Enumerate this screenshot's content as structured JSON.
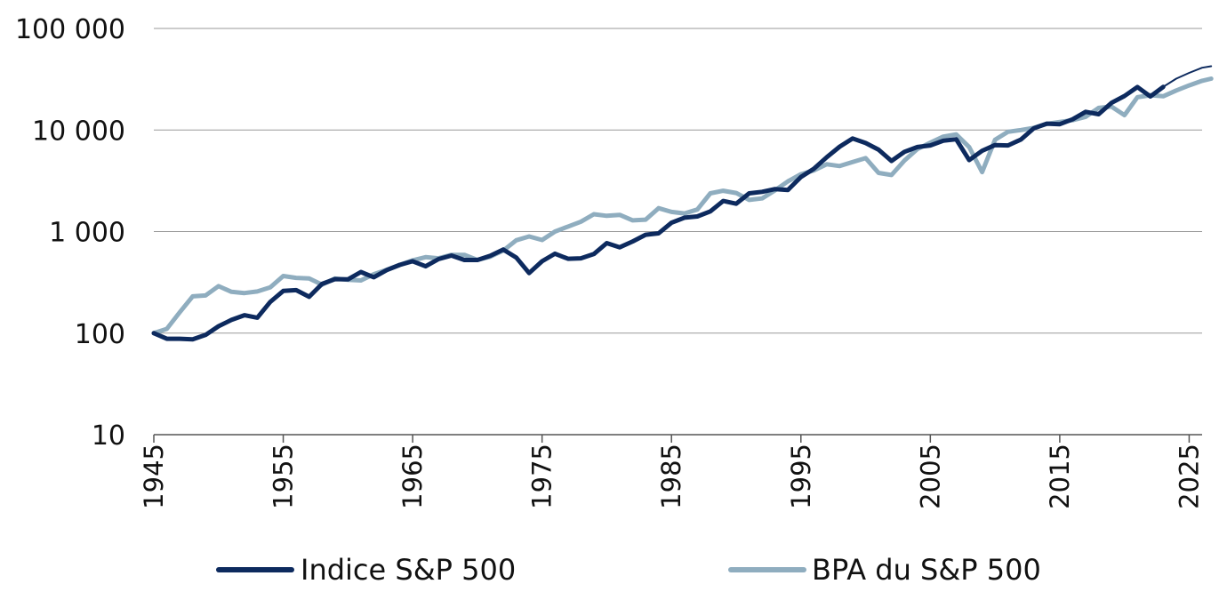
{
  "chart_data": {
    "type": "line",
    "log_scale_y": true,
    "ylim": [
      10,
      100000
    ],
    "xlim": [
      1945,
      2026
    ],
    "y_ticks": [
      {
        "value": 100000,
        "label": "100 000"
      },
      {
        "value": 10000,
        "label": "10 000"
      },
      {
        "value": 1000,
        "label": "1 000"
      },
      {
        "value": 100,
        "label": "100"
      },
      {
        "value": 10,
        "label": "10"
      }
    ],
    "x_ticks": [
      {
        "value": 1945,
        "label": "1945"
      },
      {
        "value": 1955,
        "label": "1955"
      },
      {
        "value": 1965,
        "label": "1965"
      },
      {
        "value": 1975,
        "label": "1975"
      },
      {
        "value": 1985,
        "label": "1985"
      },
      {
        "value": 1995,
        "label": "1995"
      },
      {
        "value": 2005,
        "label": "2005"
      },
      {
        "value": 2015,
        "label": "2015"
      },
      {
        "value": 2025,
        "label": "2025"
      }
    ],
    "grid": "horizontal",
    "legend_position": "bottom",
    "series": [
      {
        "name": "Indice S&P 500",
        "color": "#0d2a5e",
        "points": [
          [
            1945,
            100
          ],
          [
            1946,
            88
          ],
          [
            1947,
            88
          ],
          [
            1948,
            87
          ],
          [
            1949,
            96
          ],
          [
            1950,
            117
          ],
          [
            1951,
            135
          ],
          [
            1952,
            150
          ],
          [
            1953,
            142
          ],
          [
            1954,
            203
          ],
          [
            1955,
            260
          ],
          [
            1956,
            265
          ],
          [
            1957,
            228
          ],
          [
            1958,
            305
          ],
          [
            1959,
            340
          ],
          [
            1960,
            338
          ],
          [
            1961,
            400
          ],
          [
            1962,
            355
          ],
          [
            1963,
            418
          ],
          [
            1964,
            470
          ],
          [
            1965,
            510
          ],
          [
            1966,
            455
          ],
          [
            1967,
            535
          ],
          [
            1968,
            580
          ],
          [
            1969,
            525
          ],
          [
            1970,
            525
          ],
          [
            1971,
            578
          ],
          [
            1972,
            665
          ],
          [
            1973,
            555
          ],
          [
            1974,
            390
          ],
          [
            1975,
            510
          ],
          [
            1976,
            605
          ],
          [
            1977,
            540
          ],
          [
            1978,
            545
          ],
          [
            1979,
            600
          ],
          [
            1980,
            770
          ],
          [
            1981,
            700
          ],
          [
            1982,
            800
          ],
          [
            1983,
            930
          ],
          [
            1984,
            960
          ],
          [
            1985,
            1220
          ],
          [
            1986,
            1370
          ],
          [
            1987,
            1410
          ],
          [
            1988,
            1580
          ],
          [
            1989,
            2000
          ],
          [
            1990,
            1880
          ],
          [
            1991,
            2380
          ],
          [
            1992,
            2460
          ],
          [
            1993,
            2620
          ],
          [
            1994,
            2570
          ],
          [
            1995,
            3450
          ],
          [
            1996,
            4150
          ],
          [
            1997,
            5400
          ],
          [
            1998,
            6850
          ],
          [
            1999,
            8250
          ],
          [
            2000,
            7450
          ],
          [
            2001,
            6400
          ],
          [
            2002,
            4950
          ],
          [
            2003,
            6100
          ],
          [
            2004,
            6800
          ],
          [
            2005,
            7050
          ],
          [
            2006,
            7850
          ],
          [
            2007,
            8100
          ],
          [
            2008,
            5050
          ],
          [
            2009,
            6250
          ],
          [
            2010,
            7100
          ],
          [
            2011,
            7050
          ],
          [
            2012,
            8050
          ],
          [
            2013,
            10400
          ],
          [
            2014,
            11550
          ],
          [
            2015,
            11400
          ],
          [
            2016,
            12750
          ],
          [
            2017,
            15100
          ],
          [
            2018,
            14300
          ],
          [
            2019,
            18500
          ],
          [
            2020,
            21600
          ],
          [
            2021,
            26500
          ],
          [
            2022,
            21400
          ],
          [
            2023,
            26600
          ]
        ],
        "forecast": [
          [
            2023,
            26600
          ],
          [
            2024,
            32000
          ],
          [
            2025,
            36500
          ],
          [
            2026,
            41000
          ],
          [
            2026.7,
            42500
          ]
        ]
      },
      {
        "name": "BPA du S&P 500",
        "color": "#8fadbf",
        "points": [
          [
            1945,
            100
          ],
          [
            1946,
            110
          ],
          [
            1947,
            160
          ],
          [
            1948,
            230
          ],
          [
            1949,
            235
          ],
          [
            1950,
            290
          ],
          [
            1951,
            255
          ],
          [
            1952,
            248
          ],
          [
            1953,
            257
          ],
          [
            1954,
            282
          ],
          [
            1955,
            365
          ],
          [
            1956,
            350
          ],
          [
            1957,
            345
          ],
          [
            1958,
            300
          ],
          [
            1959,
            345
          ],
          [
            1960,
            335
          ],
          [
            1961,
            330
          ],
          [
            1962,
            380
          ],
          [
            1963,
            420
          ],
          [
            1964,
            470
          ],
          [
            1965,
            520
          ],
          [
            1966,
            560
          ],
          [
            1967,
            545
          ],
          [
            1968,
            590
          ],
          [
            1969,
            590
          ],
          [
            1970,
            525
          ],
          [
            1971,
            565
          ],
          [
            1972,
            650
          ],
          [
            1973,
            820
          ],
          [
            1974,
            895
          ],
          [
            1975,
            825
          ],
          [
            1976,
            1000
          ],
          [
            1977,
            1120
          ],
          [
            1978,
            1250
          ],
          [
            1979,
            1480
          ],
          [
            1980,
            1430
          ],
          [
            1981,
            1460
          ],
          [
            1982,
            1290
          ],
          [
            1983,
            1310
          ],
          [
            1984,
            1700
          ],
          [
            1985,
            1560
          ],
          [
            1986,
            1510
          ],
          [
            1987,
            1650
          ],
          [
            1988,
            2380
          ],
          [
            1989,
            2520
          ],
          [
            1990,
            2400
          ],
          [
            1991,
            2050
          ],
          [
            1992,
            2120
          ],
          [
            1993,
            2550
          ],
          [
            1994,
            3120
          ],
          [
            1995,
            3670
          ],
          [
            1996,
            4000
          ],
          [
            1997,
            4600
          ],
          [
            1998,
            4420
          ],
          [
            1999,
            4850
          ],
          [
            2000,
            5280
          ],
          [
            2001,
            3780
          ],
          [
            2002,
            3600
          ],
          [
            2003,
            5000
          ],
          [
            2004,
            6500
          ],
          [
            2005,
            7500
          ],
          [
            2006,
            8600
          ],
          [
            2007,
            9050
          ],
          [
            2008,
            6800
          ],
          [
            2009,
            3850
          ],
          [
            2010,
            8000
          ],
          [
            2011,
            9600
          ],
          [
            2012,
            10000
          ],
          [
            2013,
            10500
          ],
          [
            2014,
            11500
          ],
          [
            2015,
            12000
          ],
          [
            2016,
            12500
          ],
          [
            2017,
            13500
          ],
          [
            2018,
            16500
          ],
          [
            2019,
            17000
          ],
          [
            2020,
            14000
          ],
          [
            2021,
            21000
          ],
          [
            2022,
            22000
          ],
          [
            2023,
            21500
          ],
          [
            2024,
            24500
          ],
          [
            2025,
            27500
          ],
          [
            2026,
            30500
          ],
          [
            2026.7,
            32000
          ]
        ]
      }
    ]
  }
}
